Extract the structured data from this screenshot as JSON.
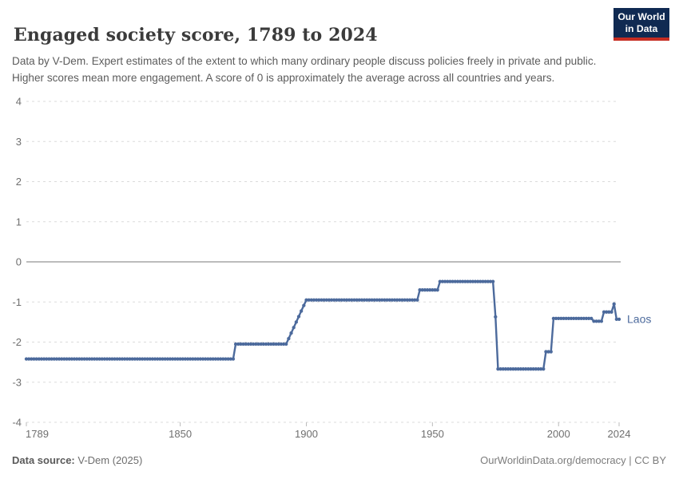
{
  "header": {
    "title": "Engaged society score, 1789 to 2024",
    "subtitle": "Data by V-Dem. Expert estimates of the extent to which many ordinary people discuss policies freely in private and public. Higher scores mean more engagement. A score of 0 is approximately the average across all countries and years.",
    "logo": {
      "line1": "Our World",
      "line2": "in Data",
      "bg_color": "#102A52",
      "bar_color": "#C62D22"
    }
  },
  "chart_data": {
    "type": "line",
    "title": "Engaged society score, 1789 to 2024",
    "xlabel": "",
    "ylabel": "",
    "xlim": [
      1789,
      2024
    ],
    "ylim": [
      -4,
      4
    ],
    "grid": true,
    "legend_position": "right-of-line",
    "y_ticks": [
      4,
      3,
      2,
      1,
      0,
      -1,
      -2,
      -3,
      -4
    ],
    "x_ticks": [
      1789,
      1850,
      1900,
      1950,
      2000,
      2024
    ],
    "zero_line": 0,
    "series": [
      {
        "name": "Laos",
        "color": "#4C6A9C",
        "marker": "circle-every-year",
        "breakpoints": [
          [
            1789,
            -2.42
          ],
          [
            1871,
            -2.42
          ],
          [
            1872,
            -2.05
          ],
          [
            1892,
            -2.05
          ],
          [
            1900,
            -0.95
          ],
          [
            1944,
            -0.95
          ],
          [
            1945,
            -0.7
          ],
          [
            1952,
            -0.7
          ],
          [
            1953,
            -0.49
          ],
          [
            1974,
            -0.49
          ],
          [
            1975,
            -1.37
          ],
          [
            1976,
            -2.67
          ],
          [
            1994,
            -2.67
          ],
          [
            1995,
            -2.24
          ],
          [
            1997,
            -2.24
          ],
          [
            1998,
            -1.41
          ],
          [
            2013,
            -1.41
          ],
          [
            2014,
            -1.48
          ],
          [
            2017,
            -1.48
          ],
          [
            2018,
            -1.25
          ],
          [
            2021,
            -1.25
          ],
          [
            2022,
            -1.05
          ],
          [
            2023,
            -1.43
          ],
          [
            2024,
            -1.43
          ]
        ]
      }
    ],
    "colors": {
      "gridline": "#DBDBDB",
      "zero_line": "#A5A5A5",
      "tick_mark": "#BBBBBB",
      "axis_label": "#6F6F6F"
    }
  },
  "footer": {
    "source_label": "Data source:",
    "source_value": " V-Dem (2025)",
    "right": "OurWorldinData.org/democracy | CC BY"
  }
}
